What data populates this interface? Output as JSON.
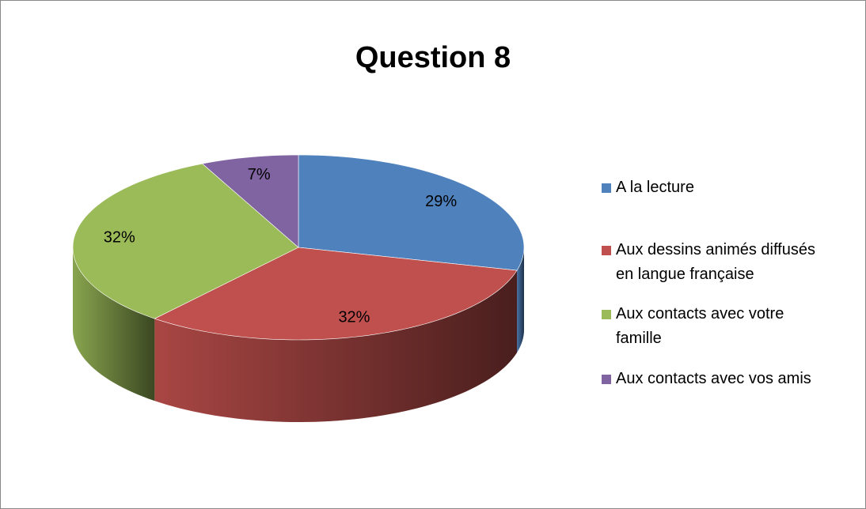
{
  "chart_data": {
    "type": "pie",
    "title": "Question 8",
    "categories": [
      "A la lecture",
      "Aux dessins animés diffusés en langue française",
      "Aux contacts avec votre famille",
      "Aux contacts avec vos amis"
    ],
    "values": [
      29,
      32,
      32,
      7
    ],
    "value_labels": [
      "29%",
      "32%",
      "32%",
      "7%"
    ],
    "colors": [
      "#4f81bd",
      "#c0504d",
      "#9bbb59",
      "#8064a2"
    ],
    "legend": "right"
  }
}
